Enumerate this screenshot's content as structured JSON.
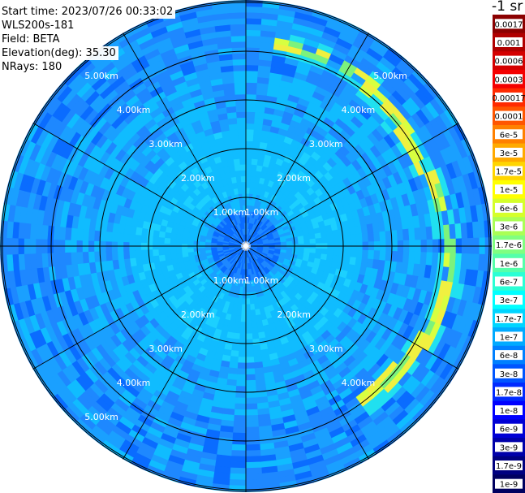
{
  "header": {
    "start_time": "Start time: 2023/07/26 00:33:02",
    "instrument": "WLS200s-181",
    "field": "Field: BETA",
    "elevation": "Elevation(deg): 35.30",
    "nrays": "NRays: 180"
  },
  "colorbar": {
    "unit_label": "-1 sr",
    "levels": [
      "0.0017",
      "0.001",
      "0.0006",
      "0.0003",
      "0.00017",
      "0.0001",
      "6e-5",
      "3e-5",
      "1.7e-5",
      "1e-5",
      "6e-6",
      "3e-6",
      "1.7e-6",
      "1e-6",
      "6e-7",
      "3e-7",
      "1.7e-7",
      "1e-7",
      "6e-8",
      "3e-8",
      "1.7e-8",
      "1e-8",
      "6e-9",
      "3e-9",
      "1.7e-9",
      "1e-9"
    ],
    "colors": [
      "#8b0000",
      "#b00000",
      "#d40000",
      "#f40000",
      "#ff2a00",
      "#ff5500",
      "#ff8000",
      "#ffaa00",
      "#ffd500",
      "#ffff00",
      "#d5ff2a",
      "#aaff55",
      "#80ff80",
      "#55ffaa",
      "#2affd5",
      "#00ffff",
      "#00d5ff",
      "#00aaff",
      "#0080ff",
      "#0055ff",
      "#002aff",
      "#0000ff",
      "#0000d5",
      "#0000aa",
      "#000080",
      "#000060"
    ]
  },
  "chart_data": {
    "type": "heatmap",
    "projection": "polar (PPI scan)",
    "field": "BETA",
    "range_rings_km": [
      1,
      2,
      3,
      4,
      5
    ],
    "ring_labels": [
      "1.00km",
      "2.00km",
      "3.00km",
      "4.00km",
      "5.00km"
    ],
    "spokes_deg": [
      0,
      30,
      60,
      90,
      120,
      150,
      180,
      210,
      240,
      270,
      300,
      330
    ],
    "max_range_km": 5.0,
    "nrays": 180,
    "dominant_value_range": [
      "3e-8",
      "1e-7"
    ],
    "features": [
      {
        "description": "near-range low backscatter core",
        "range_km": [
          0,
          0.8
        ],
        "value_approx": "3e-8"
      },
      {
        "description": "inner cyan region",
        "range_km": [
          0.8,
          2.4
        ],
        "value_approx": "1.7e-7"
      },
      {
        "description": "high backscatter arc (cloud/aerosol band)",
        "azimuth_deg": [
          10,
          145
        ],
        "range_km": [
          3.8,
          4.3
        ],
        "value_approx": "6e-6"
      }
    ]
  }
}
